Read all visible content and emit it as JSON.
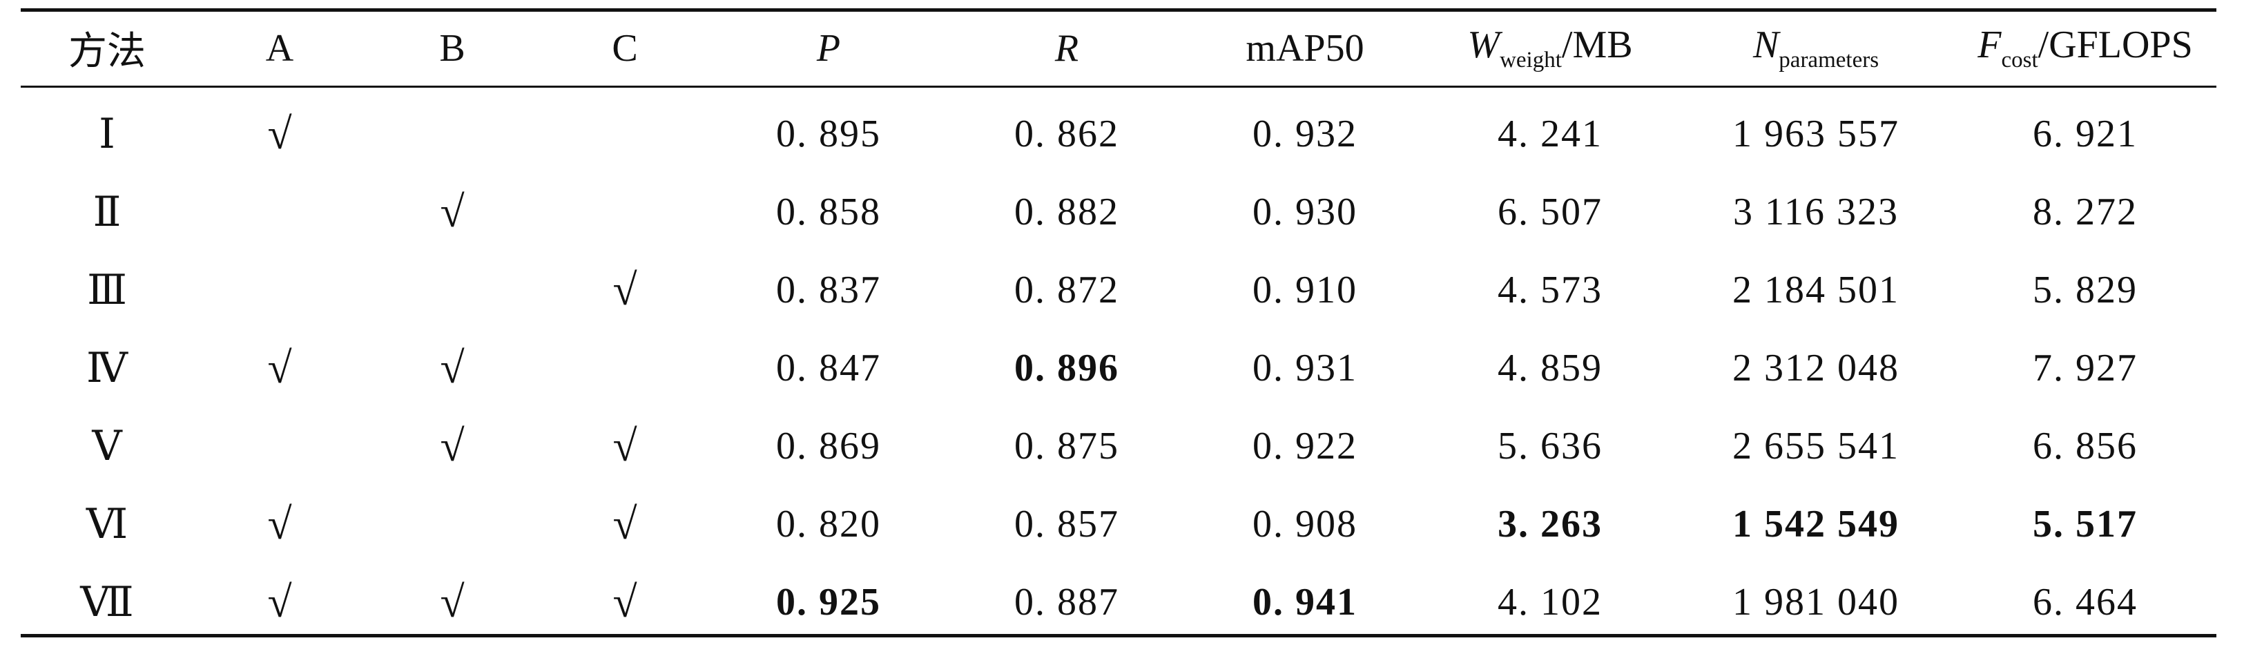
{
  "table": {
    "headers": {
      "method": "方法",
      "a": "A",
      "b": "B",
      "c": "C",
      "p": "P",
      "r": "R",
      "map": "mAP50",
      "w_main": "W",
      "w_sub": "weight",
      "w_unit": "/MB",
      "n_main": "N",
      "n_sub": "parameters",
      "f_main": "F",
      "f_sub": "cost",
      "f_unit": "/GFLOPS"
    },
    "check_symbol": "√",
    "rows": [
      {
        "method": "Ⅰ",
        "a": "√",
        "b": "",
        "c": "",
        "p": "0. 895",
        "r": "0. 862",
        "map": "0. 932",
        "w": "4. 241",
        "n": "1 963 557",
        "f": "6. 921"
      },
      {
        "method": "Ⅱ",
        "a": "",
        "b": "√",
        "c": "",
        "p": "0. 858",
        "r": "0. 882",
        "map": "0. 930",
        "w": "6. 507",
        "n": "3 116 323",
        "f": "8. 272"
      },
      {
        "method": "Ⅲ",
        "a": "",
        "b": "",
        "c": "√",
        "p": "0. 837",
        "r": "0. 872",
        "map": "0. 910",
        "w": "4. 573",
        "n": "2 184 501",
        "f": "5. 829"
      },
      {
        "method": "Ⅳ",
        "a": "√",
        "b": "√",
        "c": "",
        "p": "0. 847",
        "r": "0. 896",
        "map": "0. 931",
        "w": "4. 859",
        "n": "2 312 048",
        "f": "7. 927"
      },
      {
        "method": "Ⅴ",
        "a": "",
        "b": "√",
        "c": "√",
        "p": "0. 869",
        "r": "0. 875",
        "map": "0. 922",
        "w": "5. 636",
        "n": "2 655 541",
        "f": "6. 856"
      },
      {
        "method": "Ⅵ",
        "a": "√",
        "b": "",
        "c": "√",
        "p": "0. 820",
        "r": "0. 857",
        "map": "0. 908",
        "w": "3. 263",
        "n": "1 542 549",
        "f": "5. 517"
      },
      {
        "method": "Ⅶ",
        "a": "√",
        "b": "√",
        "c": "√",
        "p": "0. 925",
        "r": "0. 887",
        "map": "0. 941",
        "w": "4. 102",
        "n": "1 981 040",
        "f": "6. 464"
      }
    ]
  }
}
